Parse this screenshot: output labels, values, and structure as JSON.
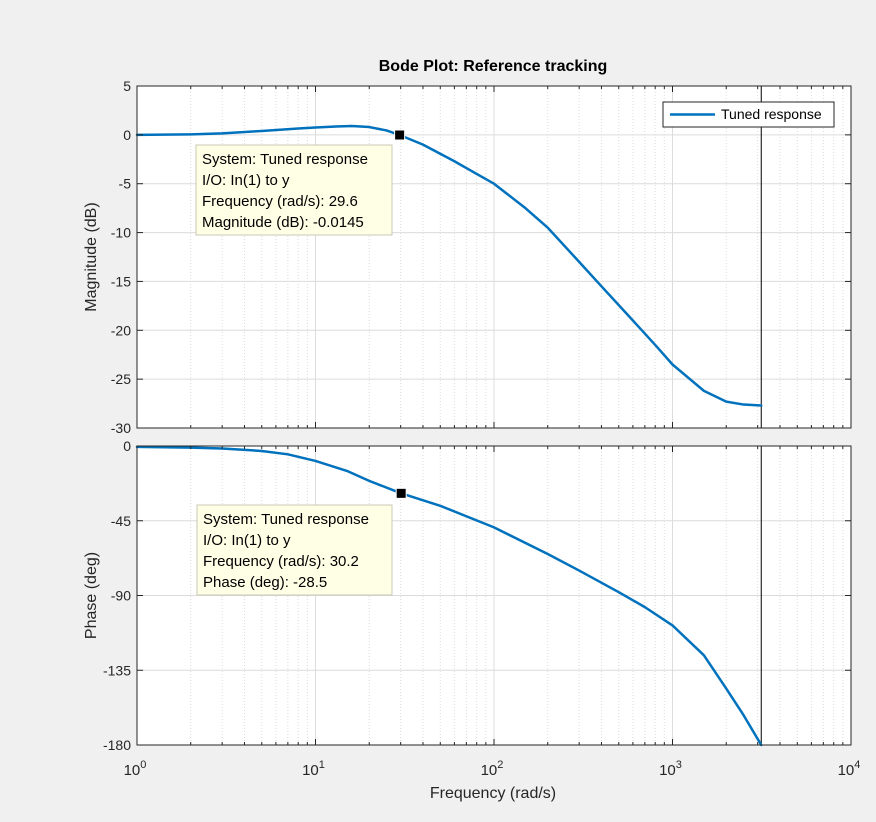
{
  "chart_data": {
    "type": "line",
    "title": "Bode Plot: Reference tracking",
    "xlabel": "Frequency  (rad/s)",
    "x_scale": "log",
    "xlim": [
      1,
      10000
    ],
    "x_ticks": [
      {
        "base": "10",
        "exp": "0"
      },
      {
        "base": "10",
        "exp": "1"
      },
      {
        "base": "10",
        "exp": "2"
      },
      {
        "base": "10",
        "exp": "3"
      },
      {
        "base": "10",
        "exp": "4"
      }
    ],
    "grid": true,
    "nyquist_marker_x": 3142,
    "legend": {
      "location": "top-right",
      "entries": [
        "Tuned response"
      ]
    },
    "series_color": "#0072BD",
    "panels": [
      {
        "ylabel": "Magnitude (dB)",
        "ylim": [
          -30,
          5
        ],
        "yticks": [
          "5",
          "0",
          "-5",
          "-10",
          "-15",
          "-20",
          "-25",
          "-30"
        ],
        "series": [
          {
            "name": "Tuned response",
            "x": [
              1,
              2,
              3,
              5,
              8,
              10,
              13,
              16,
              20,
              25,
              29.6,
              40,
              60,
              80,
              100,
              150,
              200,
              300,
              400,
              600,
              800,
              1000,
              1500,
              2000,
              2500,
              3142
            ],
            "y": [
              0,
              0.05,
              0.15,
              0.4,
              0.65,
              0.75,
              0.85,
              0.9,
              0.8,
              0.45,
              -0.0145,
              -1.0,
              -2.7,
              -4.0,
              -5.0,
              -7.5,
              -9.5,
              -13.0,
              -15.5,
              -19.0,
              -21.5,
              -23.5,
              -26.2,
              -27.3,
              -27.6,
              -27.7
            ]
          }
        ],
        "datatip": {
          "x": 29.6,
          "y": -0.0145,
          "lines": [
            "System: Tuned response",
            "I/O: In(1) to y",
            "Frequency (rad/s): 29.6",
            "Magnitude (dB): -0.0145"
          ]
        }
      },
      {
        "ylabel": "Phase (deg)",
        "ylim": [
          -180,
          0
        ],
        "yticks": [
          "0",
          "-45",
          "-90",
          "-135",
          "-180"
        ],
        "series": [
          {
            "name": "Tuned response",
            "x": [
              1,
              2,
              3,
              5,
              7,
              10,
              15,
              20,
              30.2,
              50,
              100,
              200,
              300,
              500,
              700,
              1000,
              1500,
              2000,
              2500,
              3142
            ],
            "y": [
              -0.5,
              -1,
              -1.5,
              -3,
              -5,
              -9,
              -15,
              -21,
              -28.5,
              -36,
              -49,
              -65,
              -75,
              -88,
              -97,
              -108,
              -126,
              -146,
              -162,
              -180
            ]
          }
        ],
        "datatip": {
          "x": 30.2,
          "y": -28.5,
          "lines": [
            "System: Tuned response",
            "I/O: In(1) to y",
            "Frequency (rad/s): 30.2",
            "Phase (deg): -28.5"
          ]
        }
      }
    ]
  }
}
